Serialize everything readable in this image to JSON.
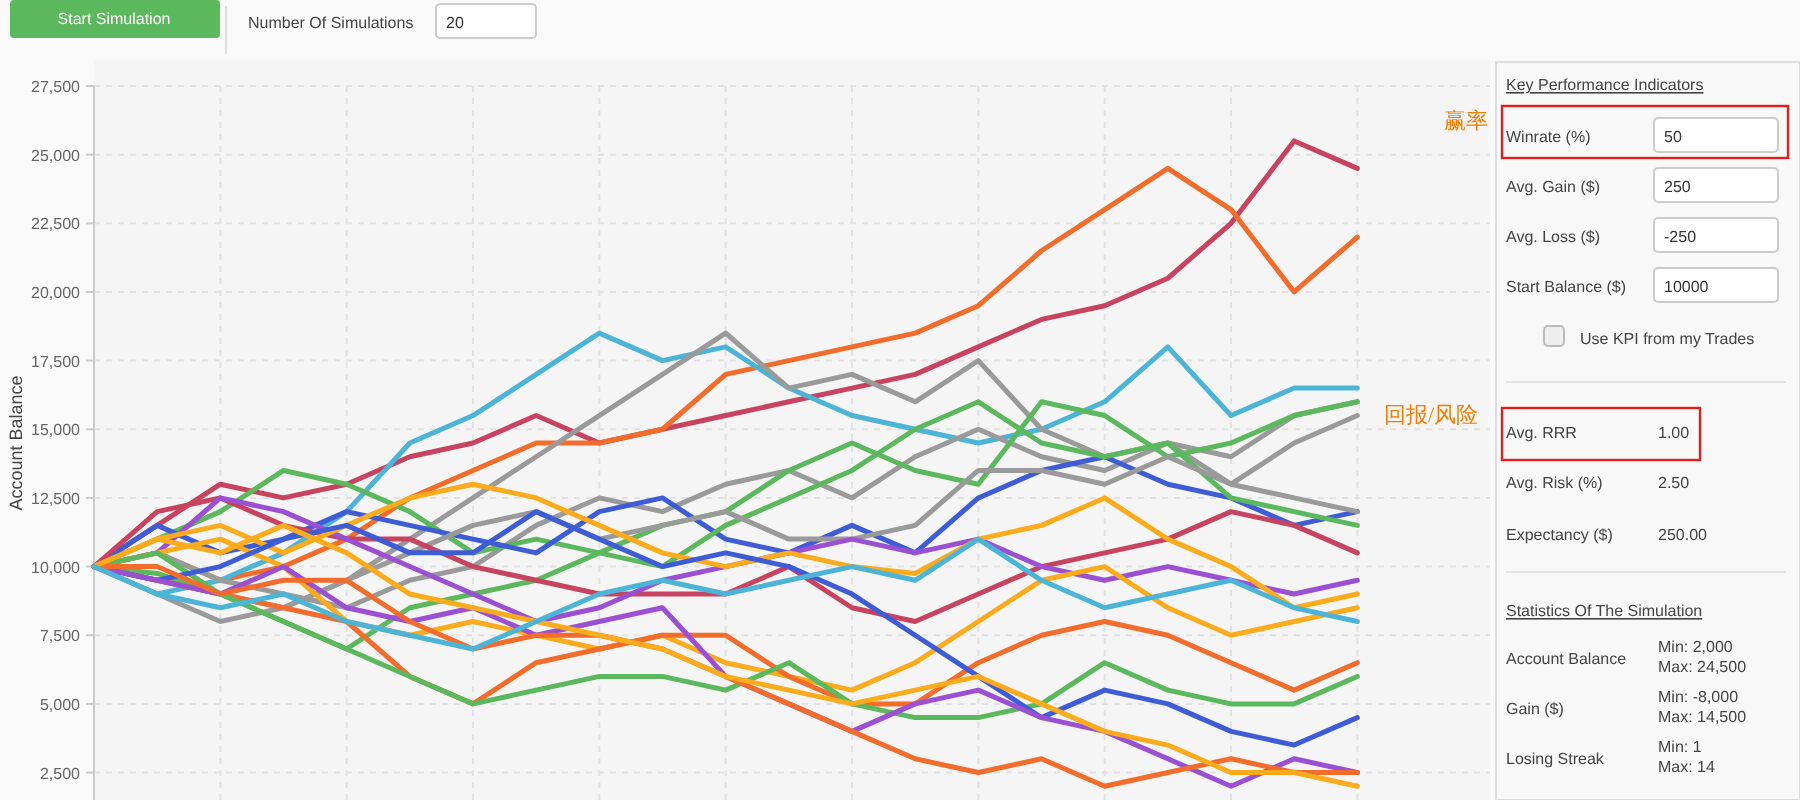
{
  "chart_data": [
    {
      "type": "line",
      "ylabel": "Account Balance",
      "ylim": [
        1500,
        27500
      ],
      "yticks": [
        {
          "value": 2500,
          "label": "2,500"
        },
        {
          "value": 5000,
          "label": "5,000"
        },
        {
          "value": 7500,
          "label": "7,500"
        },
        {
          "value": 10000,
          "label": "10,000"
        },
        {
          "value": 12500,
          "label": "12,500"
        },
        {
          "value": 15000,
          "label": "15,000"
        },
        {
          "value": 17500,
          "label": "17,500"
        },
        {
          "value": 20000,
          "label": "20,000"
        },
        {
          "value": 22500,
          "label": "22,500"
        },
        {
          "value": 25000,
          "label": "25,000"
        },
        {
          "value": 27500,
          "label": "27,500"
        }
      ],
      "grid": true,
      "line_style": "solid",
      "marker": "none",
      "tick_labels": "y",
      "categories": [
        null,
        null,
        null,
        null,
        null,
        null,
        null,
        null,
        null,
        null,
        null,
        null,
        null,
        null,
        null,
        null,
        null,
        null,
        null,
        null,
        null
      ],
      "series": [
        {
          "color": "#c8435f",
          "values": [
            10000,
            11500,
            13000,
            12500,
            13000,
            14000,
            14500,
            15500,
            14500,
            15000,
            15500,
            16000,
            16500,
            17000,
            18000,
            19000,
            19500,
            20500,
            22500,
            25500,
            24500
          ]
        },
        {
          "color": "#f26c2b",
          "values": [
            10000,
            10500,
            9500,
            10000,
            11000,
            12500,
            13500,
            14500,
            14500,
            15000,
            17000,
            17500,
            18000,
            18500,
            19500,
            21500,
            23000,
            24500,
            23000,
            20000,
            22000
          ]
        },
        {
          "color": "#4cb4d6",
          "values": [
            10000,
            9000,
            9500,
            10500,
            12000,
            14500,
            15500,
            17000,
            18500,
            17500,
            18000,
            16500,
            15500,
            15000,
            14500,
            15000,
            16000,
            18000,
            15500,
            16500,
            16500
          ]
        },
        {
          "color": "#9a9a9a",
          "values": [
            10000,
            9500,
            9000,
            8500,
            9500,
            11000,
            12500,
            14000,
            15500,
            17000,
            18500,
            16500,
            17000,
            16000,
            17500,
            15000,
            14000,
            14500,
            14000,
            15500,
            16000
          ]
        },
        {
          "color": "#9a9a9a",
          "values": [
            10000,
            10500,
            9500,
            9000,
            8500,
            9500,
            10000,
            11500,
            12500,
            12000,
            13000,
            13500,
            12500,
            14000,
            15000,
            14000,
            13500,
            14500,
            13000,
            14500,
            15500
          ]
        },
        {
          "color": "#5cb85c",
          "values": [
            10000,
            11000,
            12000,
            13500,
            13000,
            12000,
            10500,
            11000,
            10500,
            11500,
            12000,
            13500,
            14500,
            13500,
            13000,
            16000,
            15500,
            14000,
            14500,
            15500,
            16000
          ]
        },
        {
          "color": "#3e5cd6",
          "values": [
            10000,
            11500,
            10500,
            11000,
            12000,
            11500,
            11000,
            10500,
            12000,
            12500,
            11000,
            10500,
            11500,
            10500,
            12500,
            13500,
            14000,
            13000,
            12500,
            11500,
            12000
          ]
        },
        {
          "color": "#5cb85c",
          "values": [
            10000,
            9750,
            9000,
            8000,
            7000,
            8500,
            9000,
            9500,
            10500,
            10000,
            11500,
            12500,
            13500,
            15000,
            16000,
            14500,
            14000,
            14500,
            12500,
            12000,
            11500
          ]
        },
        {
          "color": "#9a9a9a",
          "values": [
            10000,
            9000,
            8000,
            8500,
            9500,
            10500,
            11500,
            12000,
            11000,
            11500,
            12000,
            11000,
            11000,
            11500,
            13500,
            13500,
            13000,
            14000,
            13000,
            12500,
            12000
          ]
        },
        {
          "color": "#c8435f",
          "values": [
            10000,
            12000,
            12500,
            11500,
            11000,
            11000,
            10000,
            9500,
            9000,
            9000,
            9000,
            10000,
            8500,
            8000,
            9000,
            10000,
            10500,
            11000,
            12000,
            11500,
            10500
          ]
        },
        {
          "color": "#9b4fd2",
          "values": [
            10000,
            10500,
            12500,
            12000,
            11000,
            10000,
            9000,
            8000,
            8500,
            9500,
            10000,
            10500,
            11000,
            10500,
            11000,
            10000,
            9500,
            10000,
            9500,
            9000,
            9500
          ]
        },
        {
          "color": "#fbab1b",
          "values": [
            10000,
            11000,
            11500,
            10500,
            11500,
            12500,
            13000,
            12500,
            11500,
            10500,
            10000,
            10500,
            10000,
            9750,
            11000,
            11500,
            12500,
            11000,
            10000,
            8500,
            9000
          ]
        },
        {
          "color": "#fbab1b",
          "values": [
            10000,
            10500,
            11000,
            10000,
            8000,
            7500,
            8000,
            7500,
            7000,
            7500,
            6500,
            6000,
            5500,
            6500,
            8000,
            9500,
            10000,
            8500,
            7500,
            8000,
            8500
          ]
        },
        {
          "color": "#f26c2b",
          "values": [
            10000,
            9500,
            9000,
            8500,
            8000,
            6000,
            5000,
            6500,
            7000,
            7500,
            7500,
            6000,
            5000,
            5000,
            6500,
            7500,
            8000,
            7500,
            6500,
            5500,
            6500
          ]
        },
        {
          "color": "#5cb85c",
          "values": [
            10000,
            10500,
            9000,
            8000,
            7000,
            6000,
            5000,
            5500,
            6000,
            6000,
            5500,
            6500,
            5000,
            4500,
            4500,
            5000,
            6500,
            5500,
            5000,
            5000,
            6000
          ]
        },
        {
          "color": "#3e5cd6",
          "values": [
            10000,
            9500,
            10000,
            11000,
            11500,
            10500,
            10500,
            12000,
            11000,
            10000,
            10500,
            10000,
            9000,
            7500,
            6000,
            4500,
            5500,
            5000,
            4000,
            3500,
            4500
          ]
        },
        {
          "color": "#9b4fd2",
          "values": [
            10000,
            9500,
            9000,
            10000,
            8500,
            8000,
            8500,
            7500,
            8000,
            8500,
            6000,
            5000,
            4000,
            5000,
            5500,
            4500,
            4000,
            3000,
            2000,
            3000,
            2500
          ]
        },
        {
          "color": "#f26c2b",
          "values": [
            10000,
            10000,
            9000,
            9500,
            9500,
            8000,
            7000,
            7500,
            7500,
            7000,
            6000,
            5000,
            4000,
            3000,
            2500,
            3000,
            2000,
            2500,
            3000,
            2500,
            2500
          ]
        },
        {
          "color": "#fbab1b",
          "values": [
            10000,
            11000,
            10500,
            11500,
            10500,
            9000,
            8500,
            8000,
            7500,
            7000,
            6000,
            5500,
            5000,
            5500,
            6000,
            5000,
            4000,
            3500,
            2500,
            2500,
            2000
          ]
        },
        {
          "color": "#4cb4d6",
          "values": [
            10000,
            9000,
            8500,
            9000,
            8000,
            7500,
            7000,
            8000,
            9000,
            9500,
            9000,
            9500,
            10000,
            9500,
            11000,
            9500,
            8500,
            9000,
            9500,
            8500,
            8000
          ]
        }
      ]
    },
    {
      "type": "other",
      "annotations": [
        "Start Simulation",
        "Number Of Simulations",
        "20",
        "Key Performance Indicators",
        "Winrate (%)",
        "50",
        "Avg. Gain ($)",
        "250",
        "Avg. Loss ($)",
        "-250",
        "Start Balance ($)",
        "10000",
        "Use KPI from my Trades",
        "Avg. RRR",
        "1.00",
        "Avg. Risk (%)",
        "2.50",
        "Expectancy ($)",
        "250.00",
        "Statistics Of The Simulation",
        "Account Balance",
        "Min: 2,000",
        "Max: 24,500",
        "Gain ($)",
        "Min: -8,000",
        "Max: 14,500",
        "Losing Streak",
        "Min: 1",
        "Max: 14",
        "赢率",
        "回报/风险"
      ]
    }
  ]
}
